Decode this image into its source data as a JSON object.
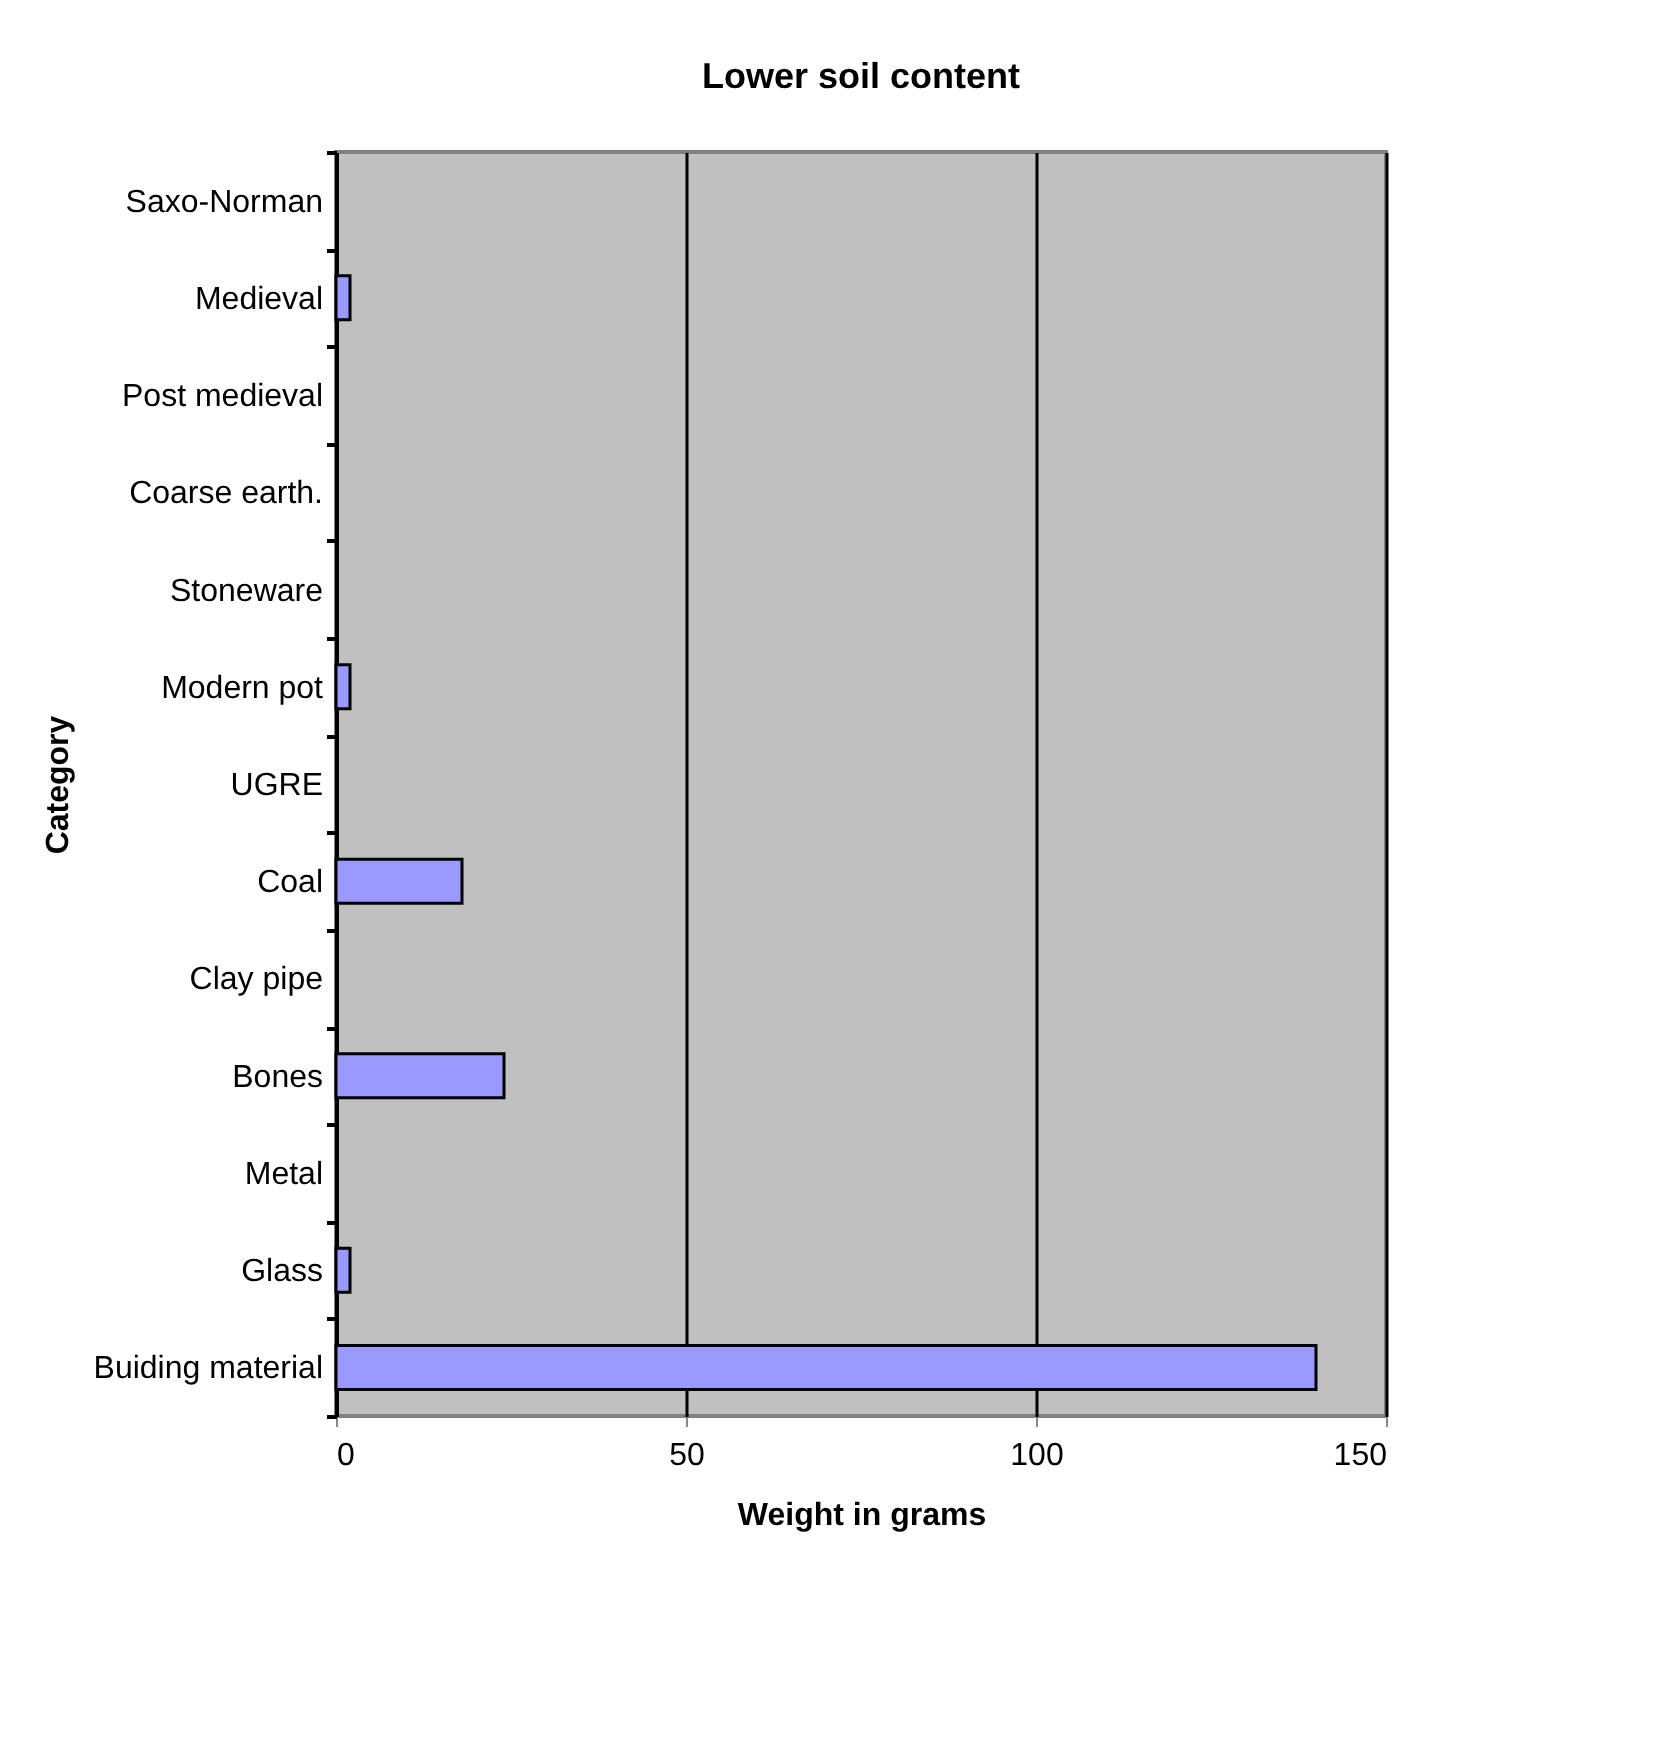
{
  "chart_data": {
    "type": "bar",
    "orientation": "horizontal",
    "title": "Lower soil content",
    "xlabel": "Weight in grams",
    "ylabel": "Category",
    "categories": [
      "Saxo-Norman",
      "Medieval",
      "Post medieval",
      "Coarse earth.",
      "Stoneware",
      "Modern pot",
      "UGRE",
      "Coal",
      "Clay pipe",
      "Bones",
      "Metal",
      "Glass",
      "Buiding material"
    ],
    "values": [
      0,
      2,
      0,
      0,
      0,
      2,
      0,
      18,
      0,
      24,
      0,
      2,
      140
    ],
    "color": "#9999ff",
    "xlim": [
      0,
      150
    ],
    "xticks": [
      0,
      50,
      100,
      150
    ],
    "grid": "x"
  }
}
